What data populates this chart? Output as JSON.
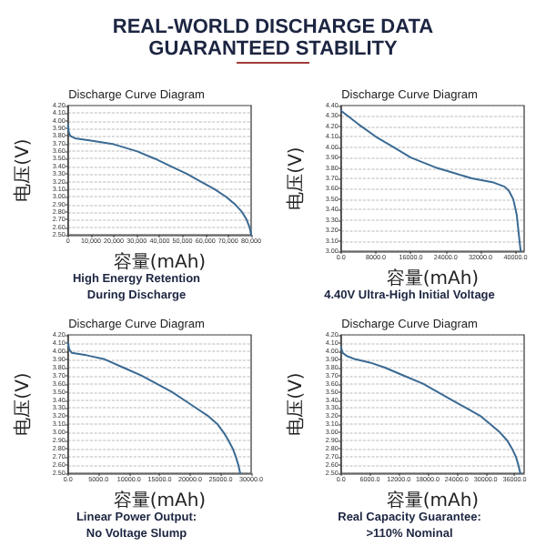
{
  "chart_data": [
    {
      "type": "other",
      "title": "REAL-WORLD DISCHARGE DATA",
      "subtitle": "GUARANTEED STABILITY"
    },
    {
      "type": "line",
      "title": "Discharge Curve Diagram",
      "xlabel": "容量(mAh)",
      "ylabel": "电压(V)",
      "annotations": [
        "High Energy Retention",
        "During Discharge"
      ],
      "grid": "y",
      "marker": "none",
      "line_style": "solid",
      "xlim": [
        0,
        80000
      ],
      "xticks": [
        0,
        {
          "value": 10000,
          "label": "10,000"
        },
        {
          "value": 20000,
          "label": "20,000"
        },
        {
          "value": 30000,
          "label": "30,000"
        },
        {
          "value": 40000,
          "label": "40,000"
        },
        {
          "value": 50000,
          "label": "50,000"
        },
        {
          "value": 60000,
          "label": "60,000"
        },
        {
          "value": 70000,
          "label": "70,000"
        },
        {
          "value": 80000,
          "label": "80,000"
        }
      ],
      "ylim": [
        2.5,
        4.2
      ],
      "yticks": [
        {
          "value": 2.5,
          "label": "2.50"
        },
        {
          "value": 2.6,
          "label": "2.60"
        },
        {
          "value": 2.7,
          "label": "2.70"
        },
        {
          "value": 2.8,
          "label": "2.80"
        },
        {
          "value": 2.9,
          "label": "2.90"
        },
        {
          "value": 3.0,
          "label": "3.00"
        },
        {
          "value": 3.1,
          "label": "3.10"
        },
        {
          "value": 3.2,
          "label": "3.20"
        },
        {
          "value": 3.3,
          "label": "3.30"
        },
        {
          "value": 3.4,
          "label": "3.40"
        },
        {
          "value": 3.5,
          "label": "3.50"
        },
        {
          "value": 3.6,
          "label": "3.60"
        },
        {
          "value": 3.7,
          "label": "3.70"
        },
        {
          "value": 3.8,
          "label": "3.80"
        },
        {
          "value": 3.9,
          "label": "3.90"
        },
        {
          "value": 4.0,
          "label": "4.00"
        },
        {
          "value": 4.1,
          "label": "4.10"
        },
        {
          "value": 4.2,
          "label": "4.20"
        }
      ],
      "series": [
        {
          "color": "#3a6a93",
          "x": [
            0,
            300,
            1000,
            3000,
            10000,
            20000,
            30000,
            38000,
            45000,
            52000,
            58000,
            64000,
            69000,
            73000,
            76000,
            78000,
            79300,
            80000
          ],
          "values": [
            3.95,
            3.85,
            3.8,
            3.77,
            3.74,
            3.69,
            3.6,
            3.5,
            3.4,
            3.3,
            3.2,
            3.1,
            3.0,
            2.9,
            2.8,
            2.7,
            2.6,
            2.5
          ]
        }
      ]
    },
    {
      "type": "line",
      "title": "Discharge Curve Diagram",
      "xlabel": "容量(mAh)",
      "ylabel": "电压(V)",
      "annotations": [
        "4.40V Ultra-High Initial Voltage"
      ],
      "grid": "y",
      "marker": "none",
      "line_style": "solid",
      "xlim": [
        0,
        42000
      ],
      "xticks": [
        {
          "value": 0,
          "label": "0.0"
        },
        {
          "value": 8000,
          "label": "8000.0"
        },
        {
          "value": 16000,
          "label": "16000.0"
        },
        {
          "value": 24000,
          "label": "24000.0"
        },
        {
          "value": 32000,
          "label": "32000.0"
        },
        {
          "value": 40000,
          "label": "40000.0"
        }
      ],
      "ylim": [
        3.0,
        4.4
      ],
      "yticks": [
        {
          "value": 3.0,
          "label": "3.00"
        },
        {
          "value": 3.1,
          "label": "3.10"
        },
        {
          "value": 3.2,
          "label": "3.20"
        },
        {
          "value": 3.3,
          "label": "3.30"
        },
        {
          "value": 3.4,
          "label": "3.40"
        },
        {
          "value": 3.5,
          "label": "3.50"
        },
        {
          "value": 3.6,
          "label": "3.60"
        },
        {
          "value": 3.7,
          "label": "3.70"
        },
        {
          "value": 3.8,
          "label": "3.80"
        },
        {
          "value": 3.9,
          "label": "3.90"
        },
        {
          "value": 4.0,
          "label": "4.00"
        },
        {
          "value": 4.1,
          "label": "4.10"
        },
        {
          "value": 4.2,
          "label": "4.20"
        },
        {
          "value": 4.3,
          "label": "4.30"
        },
        {
          "value": 4.4,
          "label": "4.40"
        }
      ],
      "series": [
        {
          "color": "#3a6a93",
          "x": [
            0,
            4000,
            8000,
            12000,
            16000,
            22000,
            26000,
            30000,
            35000,
            37500,
            38500,
            39500,
            40300,
            40800,
            41200
          ],
          "values": [
            4.35,
            4.22,
            4.1,
            4.0,
            3.9,
            3.8,
            3.75,
            3.7,
            3.66,
            3.62,
            3.58,
            3.5,
            3.35,
            3.15,
            3.0
          ]
        }
      ]
    },
    {
      "type": "line",
      "title": "Discharge Curve Diagram",
      "xlabel": "容量(mAh)",
      "ylabel": "电压(V)",
      "annotations": [
        "Linear Power Output:",
        "No Voltage Slump"
      ],
      "grid": "y",
      "marker": "none",
      "line_style": "solid",
      "xlim": [
        0,
        30000
      ],
      "xticks": [
        {
          "value": 0,
          "label": "0.0"
        },
        {
          "value": 5000,
          "label": "5000.0"
        },
        {
          "value": 10000,
          "label": "10000.0"
        },
        {
          "value": 15000,
          "label": "15000.0"
        },
        {
          "value": 20000,
          "label": "20000.0"
        },
        {
          "value": 25000,
          "label": "25000.0"
        },
        {
          "value": 30000,
          "label": "30000.0"
        }
      ],
      "ylim": [
        2.5,
        4.2
      ],
      "yticks": [
        {
          "value": 2.5,
          "label": "2.50"
        },
        {
          "value": 2.6,
          "label": "2.60"
        },
        {
          "value": 2.7,
          "label": "2.70"
        },
        {
          "value": 2.8,
          "label": "2.80"
        },
        {
          "value": 2.9,
          "label": "2.90"
        },
        {
          "value": 3.0,
          "label": "3.00"
        },
        {
          "value": 3.1,
          "label": "3.10"
        },
        {
          "value": 3.2,
          "label": "3.20"
        },
        {
          "value": 3.3,
          "label": "3.30"
        },
        {
          "value": 3.4,
          "label": "3.40"
        },
        {
          "value": 3.5,
          "label": "3.50"
        },
        {
          "value": 3.6,
          "label": "3.60"
        },
        {
          "value": 3.7,
          "label": "3.70"
        },
        {
          "value": 3.8,
          "label": "3.80"
        },
        {
          "value": 3.9,
          "label": "3.90"
        },
        {
          "value": 4.0,
          "label": "4.00"
        },
        {
          "value": 4.1,
          "label": "4.10"
        },
        {
          "value": 4.2,
          "label": "4.20"
        }
      ],
      "series": [
        {
          "color": "#3a6a93",
          "x": [
            0,
            200,
            600,
            3000,
            6000,
            9000,
            12000,
            14500,
            17000,
            19000,
            21000,
            23000,
            24500,
            25500,
            26300,
            27000,
            27500,
            27900,
            28200
          ],
          "values": [
            4.1,
            4.02,
            3.98,
            3.95,
            3.9,
            3.8,
            3.7,
            3.6,
            3.5,
            3.4,
            3.3,
            3.2,
            3.1,
            3.0,
            2.9,
            2.8,
            2.7,
            2.6,
            2.5
          ]
        }
      ]
    },
    {
      "type": "line",
      "title": "Discharge Curve Diagram",
      "xlabel": "容量(mAh)",
      "ylabel": "电压(V)",
      "annotations": [
        "Real Capacity Guarantee:",
        ">110% Nominal"
      ],
      "grid": "y",
      "marker": "none",
      "line_style": "solid",
      "xlim": [
        0,
        38000
      ],
      "xticks": [
        {
          "value": 0,
          "label": "0.0"
        },
        {
          "value": 6000,
          "label": "6000.0"
        },
        {
          "value": 12000,
          "label": "12000.0"
        },
        {
          "value": 18000,
          "label": "18000.0"
        },
        {
          "value": 24000,
          "label": "24000.0"
        },
        {
          "value": 30000,
          "label": "30000.0"
        },
        {
          "value": 36000,
          "label": "36000.0"
        }
      ],
      "ylim": [
        2.5,
        4.2
      ],
      "yticks": [
        {
          "value": 2.5,
          "label": "2.50"
        },
        {
          "value": 2.6,
          "label": "2.60"
        },
        {
          "value": 2.7,
          "label": "2.70"
        },
        {
          "value": 2.8,
          "label": "2.80"
        },
        {
          "value": 2.9,
          "label": "2.90"
        },
        {
          "value": 3.0,
          "label": "3.00"
        },
        {
          "value": 3.1,
          "label": "3.10"
        },
        {
          "value": 3.2,
          "label": "3.20"
        },
        {
          "value": 3.3,
          "label": "3.30"
        },
        {
          "value": 3.4,
          "label": "3.40"
        },
        {
          "value": 3.5,
          "label": "3.50"
        },
        {
          "value": 3.6,
          "label": "3.60"
        },
        {
          "value": 3.7,
          "label": "3.70"
        },
        {
          "value": 3.8,
          "label": "3.80"
        },
        {
          "value": 3.9,
          "label": "3.90"
        },
        {
          "value": 4.0,
          "label": "4.00"
        },
        {
          "value": 4.1,
          "label": "4.10"
        },
        {
          "value": 4.2,
          "label": "4.20"
        }
      ],
      "series": [
        {
          "color": "#3a6a93",
          "x": [
            0,
            300,
            1200,
            3000,
            6000,
            9000,
            13000,
            17000,
            20000,
            23000,
            26000,
            29000,
            31000,
            33000,
            34500,
            35500,
            36300,
            36800,
            37200
          ],
          "values": [
            4.05,
            3.98,
            3.94,
            3.9,
            3.86,
            3.8,
            3.7,
            3.6,
            3.5,
            3.4,
            3.3,
            3.2,
            3.1,
            3.0,
            2.9,
            2.8,
            2.7,
            2.6,
            2.5
          ]
        }
      ]
    }
  ]
}
